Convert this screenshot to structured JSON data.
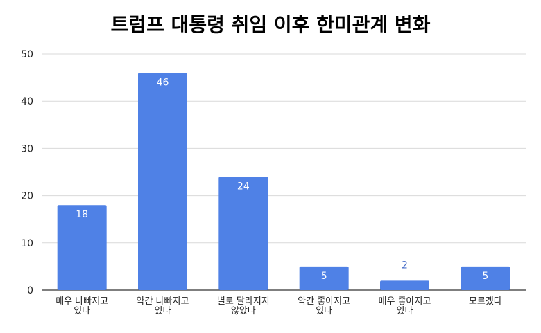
{
  "chart_data": {
    "type": "bar",
    "title": "트럼프 대통령 취임 이후 한미관계 변화",
    "categories": [
      [
        "매우 나빠지고",
        "있다"
      ],
      [
        "약간 나빠지고",
        "있다"
      ],
      [
        "별로 달라지지",
        "않았다"
      ],
      [
        "약간 좋아지고",
        "있다"
      ],
      [
        "매우 좋아지고",
        "있다"
      ],
      [
        "모르겠다"
      ]
    ],
    "values": [
      18,
      46,
      24,
      5,
      2,
      5
    ],
    "data_labels": [
      "18",
      "46",
      "24",
      "5",
      "2",
      "5"
    ],
    "xlabel": "",
    "ylabel": "",
    "ylim": [
      0,
      50
    ],
    "yticks": [
      0,
      10,
      20,
      30,
      40,
      50
    ],
    "grid": true,
    "legend": "none",
    "bar_color": "#4f81e6"
  }
}
